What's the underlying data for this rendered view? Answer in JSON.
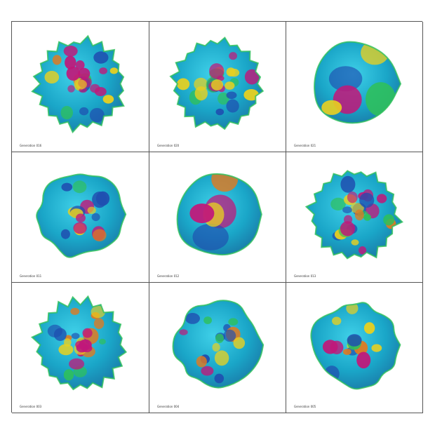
{
  "cells": [
    {
      "caption": "Generation 016",
      "style": "spiky",
      "seed": 3
    },
    {
      "caption": "Generation 020",
      "style": "spiky",
      "seed": 7
    },
    {
      "caption": "Generation 021",
      "style": "smooth",
      "seed": 11
    },
    {
      "caption": "Generation 011",
      "style": "bumpy",
      "seed": 5
    },
    {
      "caption": "Generation 012",
      "style": "smooth",
      "seed": 13
    },
    {
      "caption": "Generation 013",
      "style": "spiky",
      "seed": 17
    },
    {
      "caption": "Generation 003",
      "style": "spiky",
      "seed": 19
    },
    {
      "caption": "Generation 004",
      "style": "bumpy",
      "seed": 23
    },
    {
      "caption": "Generation 005",
      "style": "bumpy",
      "seed": 29
    }
  ],
  "colors": {
    "base": "#1aa6c8",
    "dark": "#1f4fb0",
    "hot": "#c0187a",
    "green": "#2fc05a",
    "yellow": "#e8d020",
    "orange": "#e07a20"
  }
}
